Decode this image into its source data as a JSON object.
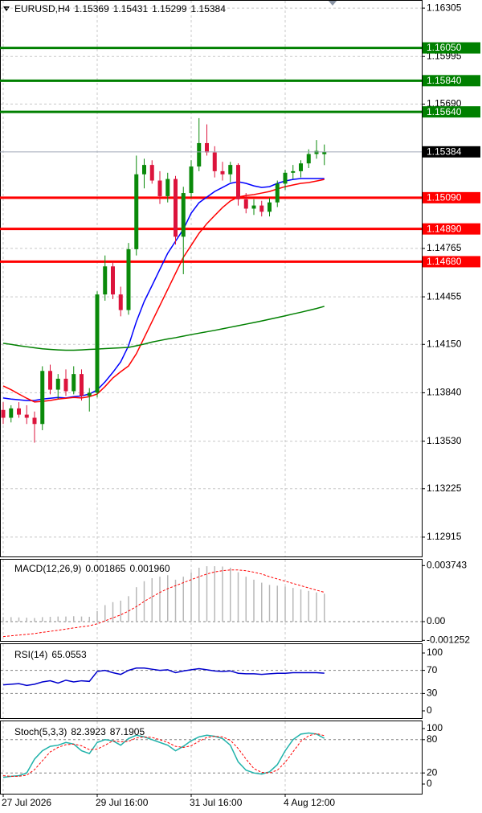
{
  "chart_data": [
    {
      "type": "candlestick",
      "title": "EURUSD,H4",
      "categories": [
        "27 Jul 2026",
        null,
        null,
        null,
        null,
        null,
        null,
        null,
        null,
        null,
        null,
        null,
        "29 Jul 16:00",
        null,
        null,
        null,
        null,
        null,
        null,
        null,
        null,
        null,
        null,
        null,
        "31 Jul 16:00",
        null,
        null,
        null,
        null,
        null,
        null,
        null,
        null,
        null,
        null,
        null,
        "4 Aug 12:00",
        null,
        null,
        null,
        null,
        null
      ],
      "open": [
        1.1373,
        1.1368,
        1.1374,
        1.137,
        1.1368,
        1.1364,
        1.1398,
        1.1386,
        1.1393,
        1.1385,
        1.1396,
        1.1382,
        1.1384,
        1.1447,
        1.1465,
        1.1447,
        1.1437,
        1.1476,
        1.1524,
        1.153,
        1.152,
        1.151,
        1.1521,
        1.1484,
        1.1512,
        1.1529,
        1.1544,
        1.1538,
        1.1526,
        1.1524,
        1.153,
        1.1508,
        1.1502,
        1.1504,
        1.15,
        1.1506,
        1.1518,
        1.1525,
        1.1526,
        1.1531,
        1.1537,
        1.15369
      ],
      "high": [
        1.1378,
        1.1376,
        1.1378,
        1.1376,
        1.1372,
        1.1401,
        1.1402,
        1.1396,
        1.1399,
        1.1401,
        1.1399,
        1.1387,
        1.1449,
        1.1472,
        1.1468,
        1.1452,
        1.148,
        1.1536,
        1.1534,
        1.1533,
        1.1526,
        1.1525,
        1.1523,
        1.1516,
        1.1533,
        1.156,
        1.1556,
        1.1542,
        1.1532,
        1.1532,
        1.1531,
        1.1512,
        1.1508,
        1.1507,
        1.1509,
        1.152,
        1.1527,
        1.153,
        1.1533,
        1.154,
        1.1546,
        1.15431
      ],
      "low": [
        1.1364,
        1.1365,
        1.1368,
        1.1364,
        1.1352,
        1.136,
        1.1383,
        1.138,
        1.1382,
        1.1383,
        1.1379,
        1.1372,
        1.1381,
        1.1443,
        1.1444,
        1.1433,
        1.1434,
        1.1472,
        1.1515,
        1.1518,
        1.1505,
        1.1506,
        1.1479,
        1.146,
        1.1509,
        1.1526,
        1.1536,
        1.1522,
        1.152,
        1.1519,
        1.1504,
        1.1499,
        1.1498,
        1.1497,
        1.1497,
        1.1503,
        1.1514,
        1.1521,
        1.1522,
        1.1528,
        1.1534,
        1.15299
      ],
      "close": [
        1.1368,
        1.1374,
        1.137,
        1.1368,
        1.1364,
        1.1398,
        1.1386,
        1.1393,
        1.1385,
        1.1396,
        1.1382,
        1.1384,
        1.1447,
        1.1465,
        1.1447,
        1.1437,
        1.1476,
        1.1524,
        1.153,
        1.152,
        1.151,
        1.1521,
        1.1484,
        1.1512,
        1.1529,
        1.1544,
        1.1538,
        1.1526,
        1.1524,
        1.153,
        1.1508,
        1.1502,
        1.1504,
        1.15,
        1.1506,
        1.1518,
        1.1525,
        1.1526,
        1.1531,
        1.1537,
        1.1539,
        1.15384
      ],
      "up_color": "#0a8a0a",
      "down_color": "#dc143c",
      "price_line_color": "#a0a8b8",
      "price_label_color": "#000000",
      "series": [
        {
          "color": "#0000ff",
          "values": [
            1.13807,
            1.138,
            1.13795,
            1.1379,
            1.13791,
            1.138,
            1.13805,
            1.1381,
            1.13807,
            1.13815,
            1.1382,
            1.13832,
            1.13858,
            1.1391,
            1.13971,
            1.14038,
            1.14141,
            1.14296,
            1.14425,
            1.14527,
            1.14631,
            1.14734,
            1.14811,
            1.14888,
            1.14991,
            1.15058,
            1.15094,
            1.1513,
            1.15156,
            1.15182,
            1.15192,
            1.15182,
            1.15166,
            1.15156,
            1.15161,
            1.15182,
            1.15197,
            1.15207,
            1.15213,
            1.15213,
            1.15213,
            1.15213
          ]
        },
        {
          "color": "#ff0000",
          "values": [
            1.13884,
            1.1386,
            1.13832,
            1.13805,
            1.13781,
            1.13785,
            1.13791,
            1.138,
            1.13805,
            1.1381,
            1.13807,
            1.13815,
            1.13832,
            1.1388,
            1.13935,
            1.13975,
            1.14012,
            1.1409,
            1.14193,
            1.14296,
            1.14399,
            1.14502,
            1.14605,
            1.14708,
            1.14785,
            1.14862,
            1.14924,
            1.14976,
            1.15027,
            1.15069,
            1.15094,
            1.15104,
            1.1511,
            1.1512,
            1.1513,
            1.15146,
            1.15161,
            1.15172,
            1.15182,
            1.15187,
            1.15197,
            1.15207
          ]
        },
        {
          "color": "#008000",
          "values": [
            1.14157,
            1.1415,
            1.14142,
            1.14135,
            1.14128,
            1.14122,
            1.14118,
            1.14115,
            1.14113,
            1.14113,
            1.14115,
            1.14118,
            1.1412,
            1.14123,
            1.14126,
            1.14128,
            1.14131,
            1.14141,
            1.14152,
            1.14165,
            1.14175,
            1.14185,
            1.14193,
            1.14203,
            1.14213,
            1.14222,
            1.14231,
            1.1424,
            1.1425,
            1.1426,
            1.1427,
            1.1428,
            1.1429,
            1.143,
            1.14311,
            1.14322,
            1.14333,
            1.14345,
            1.14356,
            1.14368,
            1.1438,
            1.14394
          ]
        }
      ],
      "levels": [
        {
          "value": 1.1605,
          "label": "1.16050",
          "color": "#008000"
        },
        {
          "value": 1.1584,
          "label": "1.15840",
          "color": "#008000"
        },
        {
          "value": 1.1564,
          "label": "1.15640",
          "color": "#008000"
        },
        {
          "value": 1.1509,
          "label": "1.15090",
          "color": "#ff0000"
        },
        {
          "value": 1.1489,
          "label": "1.14890",
          "color": "#ff0000"
        },
        {
          "value": 1.1468,
          "label": "1.14680",
          "color": "#ff0000"
        }
      ],
      "ylim": [
        1.12791,
        1.16357
      ],
      "yticks": [
        1.16305,
        1.15995,
        {
          "value": 1.1569,
          "label": "1.15690"
        },
        1.14765,
        1.14455,
        {
          "value": 1.1415,
          "label": "1.14150"
        },
        {
          "value": 1.1384,
          "label": "1.13840"
        },
        {
          "value": 1.1353,
          "label": "1.13530"
        },
        1.13225,
        1.12915
      ],
      "grid": true
    },
    {
      "type": "macd",
      "title": "MACD(12,26,9)",
      "series": [
        {
          "color": "#b8b8b8",
          "values": [
            0.0003,
            0.0003,
            0.00028,
            0.00026,
            0.00024,
            0.0003,
            0.00032,
            0.00034,
            0.00034,
            0.00036,
            0.00034,
            0.00032,
            0.0007,
            0.0011,
            0.0013,
            0.0014,
            0.0017,
            0.0023,
            0.0027,
            0.0029,
            0.003,
            0.0031,
            0.0028,
            0.003,
            0.0033,
            0.0036,
            0.0037,
            0.0037,
            0.00368,
            0.0036,
            0.0033,
            0.003,
            0.0028,
            0.0026,
            0.00245,
            0.0024,
            0.00235,
            0.00225,
            0.00215,
            0.00205,
            0.00195,
            0.001865
          ]
        },
        {
          "color": "#ff0000",
          "values": [
            -0.001,
            -0.00095,
            -0.0009,
            -0.00085,
            -0.0008,
            -0.00072,
            -0.00065,
            -0.00058,
            -0.0005,
            -0.00042,
            -0.00035,
            -0.00028,
            -0.00015,
            5e-05,
            0.00025,
            0.00045,
            0.0007,
            0.001,
            0.00135,
            0.00165,
            0.00195,
            0.0022,
            0.0024,
            0.0026,
            0.0028,
            0.003,
            0.00318,
            0.00332,
            0.0034,
            0.00345,
            0.00345,
            0.0034,
            0.0033,
            0.00318,
            0.003,
            0.00285,
            0.0027,
            0.00255,
            0.0024,
            0.00225,
            0.0021,
            0.00196
          ],
          "value_labels": [
            null,
            null,
            null,
            null,
            null,
            null,
            null,
            null,
            null,
            null,
            null,
            null,
            null,
            null,
            null,
            null,
            null,
            null,
            null,
            null,
            null,
            null,
            null,
            null,
            null,
            null,
            null,
            null,
            null,
            null,
            null,
            null,
            null,
            null,
            null,
            null,
            null,
            null,
            null,
            null,
            null,
            "0.001960"
          ]
        }
      ],
      "ylim": [
        -0.00129,
        0.00419
      ],
      "yticks": [
        0.003743,
        {
          "value": 0,
          "label": "0.00"
        },
        -0.001252
      ],
      "grid": true
    },
    {
      "type": "line",
      "title": "RSI(14)",
      "series": [
        {
          "color": "#0000cd",
          "values": [
            45,
            46,
            47,
            44,
            46,
            50,
            52,
            48,
            53,
            50,
            52,
            51,
            68,
            70,
            66,
            63,
            70,
            74,
            74,
            72,
            70,
            71,
            66,
            69,
            71,
            73,
            71,
            69,
            68,
            69,
            65,
            64,
            64,
            63,
            64,
            65,
            65,
            66,
            66,
            66,
            66,
            65.0553
          ]
        }
      ],
      "ylim": [
        -12.5,
        116.7
      ],
      "yticks": [
        100,
        70,
        30,
        0
      ],
      "grid": true
    },
    {
      "type": "line",
      "title": "Stoch(5,3,3)",
      "series": [
        {
          "color": "#20b2aa",
          "values": [
            12,
            14,
            15,
            20,
            45,
            60,
            68,
            70,
            75,
            72,
            60,
            55,
            75,
            80,
            78,
            70,
            82,
            88,
            85,
            80,
            75,
            70,
            60,
            68,
            78,
            85,
            88,
            86,
            82,
            70,
            40,
            25,
            20,
            18,
            22,
            35,
            60,
            80,
            90,
            92,
            90,
            82.3923
          ]
        },
        {
          "color": "#ff0000",
          "dashed": true,
          "values": [
            15,
            14,
            14,
            16,
            26,
            42,
            58,
            66,
            71,
            72,
            69,
            62,
            63,
            70,
            78,
            76,
            77,
            83,
            85,
            84,
            80,
            75,
            68,
            66,
            69,
            77,
            84,
            86,
            85,
            79,
            64,
            45,
            28,
            21,
            20,
            25,
            39,
            58,
            77,
            87,
            91,
            87.1905
          ]
        }
      ],
      "ylim": [
        -17.4,
        114.5
      ],
      "yticks": [
        100,
        80,
        20,
        0
      ],
      "grid": true
    }
  ]
}
